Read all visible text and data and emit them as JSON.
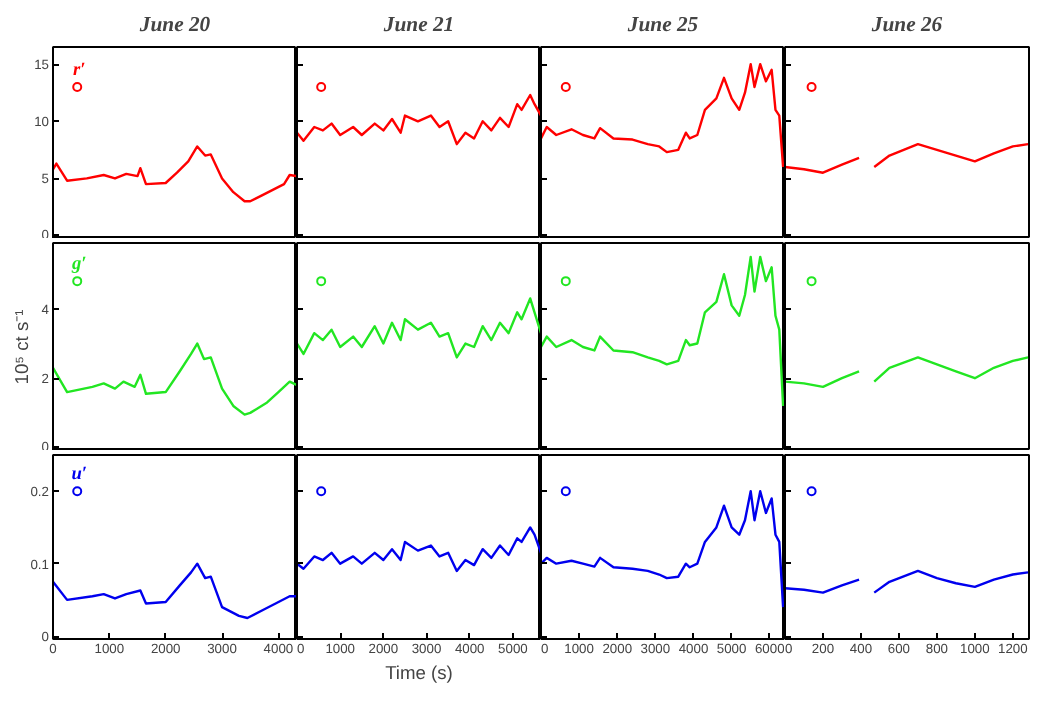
{
  "chart_data": [
    {
      "type": "line",
      "title": "June 20",
      "annotations": [
        "r′"
      ],
      "xlim": [
        0,
        4330
      ],
      "ylim": [
        -0.3,
        16.5
      ],
      "yticks": [
        0,
        5,
        10,
        15
      ],
      "tick_labels": "y",
      "series": [
        {
          "type": "line",
          "color": "#ff0000",
          "x": [
            0,
            60,
            250,
            600,
            900,
            1100,
            1300,
            1500,
            1550,
            1650,
            2000,
            2200,
            2400,
            2560,
            2700,
            2800,
            3000,
            3200,
            3400,
            3500,
            3700,
            3900,
            4100,
            4200,
            4330
          ],
          "values": [
            5.8,
            6.3,
            4.8,
            5.0,
            5.3,
            5.0,
            5.4,
            5.2,
            5.9,
            4.5,
            4.6,
            5.5,
            6.5,
            7.8,
            7.0,
            7.1,
            5.0,
            3.8,
            3.0,
            3.0,
            3.5,
            4.0,
            4.5,
            5.3,
            5.2
          ]
        },
        {
          "type": "scatter",
          "marker": "circle",
          "color": "#ff0000",
          "x": [
            430
          ],
          "values": [
            13
          ]
        }
      ]
    },
    {
      "type": "line",
      "title": "June 21",
      "xlim": [
        0,
        5650
      ],
      "ylim": [
        -0.3,
        16.5
      ],
      "yticks": [
        0,
        5,
        10,
        15
      ],
      "tick_labels": false,
      "series": [
        {
          "type": "line",
          "color": "#ff0000",
          "x": [
            0,
            150,
            400,
            600,
            800,
            1000,
            1300,
            1500,
            1800,
            2000,
            2200,
            2400,
            2500,
            2800,
            3100,
            3300,
            3500,
            3700,
            3900,
            4100,
            4300,
            4500,
            4700,
            4900,
            5100,
            5200,
            5400,
            5500,
            5650
          ],
          "values": [
            9.0,
            8.3,
            9.5,
            9.2,
            9.8,
            8.8,
            9.5,
            8.8,
            9.8,
            9.2,
            10.2,
            9.0,
            10.5,
            10.0,
            10.5,
            9.5,
            10.0,
            8.0,
            9.0,
            8.5,
            10.0,
            9.2,
            10.3,
            9.5,
            11.5,
            11.0,
            12.3,
            11.5,
            10.5
          ]
        },
        {
          "type": "scatter",
          "marker": "circle",
          "color": "#ff0000",
          "x": [
            560
          ],
          "values": [
            13
          ]
        }
      ]
    },
    {
      "type": "line",
      "title": "June 25",
      "xlim": [
        0,
        6400
      ],
      "ylim": [
        -0.3,
        16.5
      ],
      "yticks": [
        0,
        5,
        10,
        15
      ],
      "tick_labels": false,
      "series": [
        {
          "type": "line",
          "color": "#ff0000",
          "x": [
            0,
            150,
            400,
            800,
            1100,
            1400,
            1550,
            1900,
            2400,
            2800,
            3100,
            3300,
            3600,
            3800,
            3900,
            4100,
            4300,
            4600,
            4800,
            5000,
            5200,
            5350,
            5500,
            5600,
            5750,
            5900,
            6050,
            6150,
            6250,
            6350
          ],
          "values": [
            8.5,
            9.5,
            8.8,
            9.3,
            8.8,
            8.5,
            9.4,
            8.5,
            8.4,
            8.0,
            7.8,
            7.3,
            7.5,
            9.0,
            8.5,
            8.8,
            11.0,
            12.0,
            13.8,
            12.0,
            11.0,
            12.5,
            15.0,
            13.0,
            15.0,
            13.5,
            14.5,
            11.0,
            10.5,
            6.0
          ]
        },
        {
          "type": "scatter",
          "marker": "circle",
          "color": "#ff0000",
          "x": [
            650
          ],
          "values": [
            13
          ]
        }
      ]
    },
    {
      "type": "line",
      "title": "June 26",
      "xlim": [
        0,
        1285
      ],
      "ylim": [
        -0.3,
        16.5
      ],
      "yticks": [
        0,
        5,
        10,
        15
      ],
      "tick_labels": false,
      "series": [
        {
          "type": "line",
          "color": "#ff0000",
          "x": [
            0,
            100,
            200,
            300,
            390,
            430,
            470,
            550,
            700,
            800,
            900,
            1000,
            1100,
            1200,
            1280
          ],
          "values": [
            6.0,
            5.8,
            5.5,
            6.2,
            6.8,
            null,
            6.0,
            7.0,
            8.0,
            7.5,
            7.0,
            6.5,
            7.2,
            7.8,
            8.0
          ]
        },
        {
          "type": "scatter",
          "marker": "circle",
          "color": "#ff0000",
          "x": [
            140
          ],
          "values": [
            13
          ]
        }
      ]
    },
    {
      "type": "line",
      "ylabel": "10⁵ ct s⁻¹",
      "annotations": [
        "g′"
      ],
      "xlim": [
        0,
        4330
      ],
      "ylim": [
        -0.1,
        5.9
      ],
      "yticks": [
        0,
        2,
        4
      ],
      "tick_labels": "y",
      "series": [
        {
          "type": "line",
          "color": "#22e622",
          "x": [
            0,
            250,
            700,
            900,
            1100,
            1250,
            1450,
            1550,
            1650,
            2000,
            2250,
            2450,
            2560,
            2680,
            2800,
            3000,
            3200,
            3400,
            3500,
            3800,
            4000,
            4200,
            4330
          ],
          "values": [
            2.3,
            1.6,
            1.75,
            1.85,
            1.7,
            1.9,
            1.75,
            2.1,
            1.55,
            1.6,
            2.2,
            2.7,
            3.0,
            2.55,
            2.6,
            1.7,
            1.2,
            0.95,
            1.0,
            1.3,
            1.6,
            1.9,
            1.8
          ]
        },
        {
          "type": "scatter",
          "marker": "circle",
          "color": "#22e622",
          "x": [
            430
          ],
          "values": [
            4.8
          ]
        }
      ]
    },
    {
      "type": "line",
      "xlim": [
        0,
        5650
      ],
      "ylim": [
        -0.1,
        5.9
      ],
      "yticks": [
        0,
        2,
        4
      ],
      "tick_labels": false,
      "series": [
        {
          "type": "line",
          "color": "#22e622",
          "x": [
            0,
            150,
            400,
            600,
            800,
            1000,
            1300,
            1500,
            1800,
            2000,
            2200,
            2400,
            2500,
            2800,
            3100,
            3300,
            3500,
            3700,
            3900,
            4100,
            4300,
            4500,
            4700,
            4900,
            5100,
            5200,
            5400,
            5500,
            5650
          ],
          "values": [
            3.0,
            2.7,
            3.3,
            3.1,
            3.4,
            2.9,
            3.2,
            2.9,
            3.5,
            3.0,
            3.6,
            3.1,
            3.7,
            3.4,
            3.6,
            3.2,
            3.3,
            2.6,
            3.0,
            2.9,
            3.5,
            3.1,
            3.6,
            3.3,
            3.9,
            3.7,
            4.3,
            3.9,
            3.3
          ]
        },
        {
          "type": "scatter",
          "marker": "circle",
          "color": "#22e622",
          "x": [
            560
          ],
          "values": [
            4.8
          ]
        }
      ]
    },
    {
      "type": "line",
      "xlim": [
        0,
        6400
      ],
      "ylim": [
        -0.1,
        5.9
      ],
      "yticks": [
        0,
        2,
        4
      ],
      "tick_labels": false,
      "series": [
        {
          "type": "line",
          "color": "#22e622",
          "x": [
            0,
            150,
            400,
            800,
            1100,
            1400,
            1550,
            1900,
            2400,
            2800,
            3100,
            3300,
            3600,
            3800,
            3900,
            4100,
            4300,
            4600,
            4800,
            5000,
            5200,
            5350,
            5500,
            5600,
            5750,
            5900,
            6050,
            6150,
            6250,
            6350
          ],
          "values": [
            2.9,
            3.2,
            2.9,
            3.1,
            2.9,
            2.8,
            3.2,
            2.8,
            2.75,
            2.6,
            2.5,
            2.4,
            2.5,
            3.1,
            2.95,
            3.0,
            3.9,
            4.2,
            5.0,
            4.1,
            3.8,
            4.4,
            5.5,
            4.5,
            5.5,
            4.8,
            5.2,
            3.8,
            3.4,
            1.2
          ]
        },
        {
          "type": "scatter",
          "marker": "circle",
          "color": "#22e622",
          "x": [
            650
          ],
          "values": [
            4.8
          ]
        }
      ]
    },
    {
      "type": "line",
      "xlim": [
        0,
        1285
      ],
      "ylim": [
        -0.1,
        5.9
      ],
      "yticks": [
        0,
        2,
        4
      ],
      "tick_labels": false,
      "series": [
        {
          "type": "line",
          "color": "#22e622",
          "x": [
            0,
            100,
            200,
            300,
            390,
            430,
            470,
            550,
            700,
            800,
            900,
            1000,
            1100,
            1200,
            1280
          ],
          "values": [
            1.9,
            1.85,
            1.75,
            2.0,
            2.2,
            null,
            1.9,
            2.3,
            2.6,
            2.4,
            2.2,
            2.0,
            2.3,
            2.5,
            2.6
          ]
        },
        {
          "type": "scatter",
          "marker": "circle",
          "color": "#22e622",
          "x": [
            140
          ],
          "values": [
            4.8
          ]
        }
      ]
    },
    {
      "type": "line",
      "annotations": [
        "u′"
      ],
      "xlim": [
        0,
        4330
      ],
      "ylim": [
        -0.004,
        0.25
      ],
      "xticks": [
        0,
        1000,
        2000,
        3000,
        4000
      ],
      "yticks": [
        0,
        0.1,
        0.2
      ],
      "series": [
        {
          "type": "line",
          "color": "#0000ee",
          "x": [
            0,
            250,
            700,
            900,
            1100,
            1300,
            1550,
            1650,
            2000,
            2250,
            2450,
            2560,
            2700,
            2800,
            3000,
            3300,
            3450,
            3700,
            3950,
            4200,
            4330
          ],
          "values": [
            0.075,
            0.05,
            0.055,
            0.058,
            0.052,
            0.058,
            0.063,
            0.045,
            0.047,
            0.07,
            0.088,
            0.1,
            0.08,
            0.082,
            0.04,
            0.028,
            0.025,
            0.035,
            0.045,
            0.055,
            0.055
          ]
        },
        {
          "type": "scatter",
          "marker": "circle",
          "color": "#0000ee",
          "x": [
            430
          ],
          "values": [
            0.2
          ]
        }
      ]
    },
    {
      "type": "line",
      "xlabel": "Time (s)",
      "xlim": [
        0,
        5650
      ],
      "ylim": [
        -0.004,
        0.25
      ],
      "xticks": [
        0,
        1000,
        2000,
        3000,
        4000,
        5000
      ],
      "yticks": [
        0,
        0.1,
        0.2
      ],
      "tick_labels": "x",
      "series": [
        {
          "type": "line",
          "color": "#0000ee",
          "x": [
            0,
            150,
            400,
            600,
            800,
            1000,
            1300,
            1500,
            1800,
            2000,
            2200,
            2400,
            2500,
            2800,
            3100,
            3300,
            3500,
            3700,
            3900,
            4100,
            4300,
            4500,
            4700,
            4900,
            5100,
            5200,
            5400,
            5500,
            5650
          ],
          "values": [
            0.1,
            0.093,
            0.11,
            0.105,
            0.115,
            0.1,
            0.11,
            0.1,
            0.115,
            0.105,
            0.12,
            0.105,
            0.13,
            0.118,
            0.125,
            0.11,
            0.115,
            0.09,
            0.105,
            0.098,
            0.12,
            0.108,
            0.125,
            0.112,
            0.135,
            0.13,
            0.15,
            0.14,
            0.115
          ]
        },
        {
          "type": "scatter",
          "marker": "circle",
          "color": "#0000ee",
          "x": [
            560
          ],
          "values": [
            0.2
          ]
        }
      ]
    },
    {
      "type": "line",
      "xlim": [
        0,
        6400
      ],
      "ylim": [
        -0.004,
        0.25
      ],
      "xticks": [
        0,
        1000,
        2000,
        3000,
        4000,
        5000,
        6000
      ],
      "yticks": [
        0,
        0.1,
        0.2
      ],
      "tick_labels": "x",
      "series": [
        {
          "type": "line",
          "color": "#0000ee",
          "x": [
            0,
            150,
            400,
            800,
            1100,
            1400,
            1550,
            1900,
            2400,
            2800,
            3100,
            3300,
            3600,
            3800,
            3900,
            4100,
            4300,
            4600,
            4800,
            5000,
            5200,
            5350,
            5500,
            5600,
            5750,
            5900,
            6050,
            6150,
            6250,
            6350
          ],
          "values": [
            0.1,
            0.108,
            0.1,
            0.104,
            0.1,
            0.096,
            0.108,
            0.095,
            0.093,
            0.09,
            0.085,
            0.08,
            0.082,
            0.1,
            0.095,
            0.1,
            0.13,
            0.15,
            0.18,
            0.15,
            0.14,
            0.16,
            0.2,
            0.16,
            0.2,
            0.17,
            0.19,
            0.14,
            0.13,
            0.04
          ]
        },
        {
          "type": "scatter",
          "marker": "circle",
          "color": "#0000ee",
          "x": [
            650
          ],
          "values": [
            0.2
          ]
        }
      ]
    },
    {
      "type": "line",
      "xlim": [
        0,
        1285
      ],
      "ylim": [
        -0.004,
        0.25
      ],
      "xticks": [
        0,
        200,
        400,
        600,
        800,
        1000,
        1200
      ],
      "yticks": [
        0,
        0.1,
        0.2
      ],
      "tick_labels": "x",
      "series": [
        {
          "type": "line",
          "color": "#0000ee",
          "x": [
            0,
            100,
            200,
            300,
            390,
            430,
            470,
            550,
            700,
            800,
            900,
            1000,
            1100,
            1200,
            1280
          ],
          "values": [
            0.066,
            0.064,
            0.06,
            0.07,
            0.078,
            null,
            0.06,
            0.075,
            0.09,
            0.08,
            0.073,
            0.068,
            0.078,
            0.085,
            0.088
          ]
        },
        {
          "type": "scatter",
          "marker": "circle",
          "color": "#0000ee",
          "x": [
            140
          ],
          "values": [
            0.2
          ]
        }
      ]
    }
  ]
}
